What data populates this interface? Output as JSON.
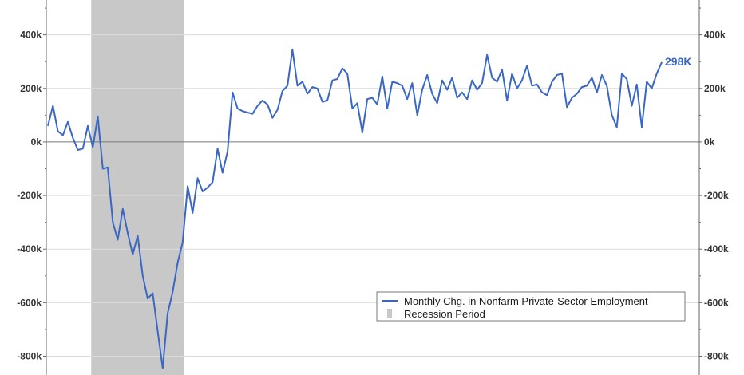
{
  "colors": {
    "series": "#3a67c4",
    "recession": "#c8c8c8",
    "grid": "#dcdcdc",
    "zero_line": "#777777",
    "axis": "#666666"
  },
  "chart_data": {
    "type": "line",
    "title": "",
    "xlabel": "",
    "ylabel": "",
    "ylim": [
      -870000,
      530000
    ],
    "y_ticks": [
      -800000,
      -600000,
      -400000,
      -200000,
      0,
      200000,
      400000
    ],
    "y_tick_labels": [
      "-800k",
      "-600k",
      "-400k",
      "-200k",
      "0k",
      "200k",
      "400k"
    ],
    "grid": true,
    "legend_position": "bottom-right",
    "end_label": "298K",
    "recession_legend": "Recession Period",
    "recession_period": {
      "start_index": 9,
      "end_index": 27
    },
    "series": [
      {
        "name": "Monthly Chg. in Nonfarm Private-Sector Employment",
        "values": [
          60000,
          135000,
          40000,
          25000,
          75000,
          15000,
          -30000,
          -25000,
          60000,
          -20000,
          95000,
          -100000,
          -95000,
          -300000,
          -365000,
          -250000,
          -340000,
          -420000,
          -350000,
          -500000,
          -585000,
          -565000,
          -705000,
          -845000,
          -640000,
          -560000,
          -450000,
          -375000,
          -165000,
          -265000,
          -135000,
          -185000,
          -170000,
          -150000,
          -25000,
          -115000,
          -35000,
          185000,
          125000,
          115000,
          110000,
          105000,
          135000,
          155000,
          140000,
          90000,
          120000,
          190000,
          210000,
          345000,
          210000,
          225000,
          180000,
          205000,
          200000,
          150000,
          155000,
          230000,
          235000,
          275000,
          255000,
          125000,
          145000,
          35000,
          160000,
          165000,
          140000,
          245000,
          125000,
          225000,
          220000,
          210000,
          160000,
          220000,
          100000,
          195000,
          250000,
          180000,
          145000,
          230000,
          195000,
          240000,
          165000,
          185000,
          160000,
          230000,
          195000,
          220000,
          325000,
          240000,
          225000,
          270000,
          155000,
          255000,
          200000,
          230000,
          285000,
          210000,
          215000,
          185000,
          175000,
          225000,
          250000,
          255000,
          130000,
          165000,
          180000,
          205000,
          210000,
          240000,
          185000,
          250000,
          210000,
          100000,
          55000,
          255000,
          235000,
          135000,
          215000,
          55000,
          225000,
          200000,
          255000,
          298000
        ]
      }
    ]
  }
}
